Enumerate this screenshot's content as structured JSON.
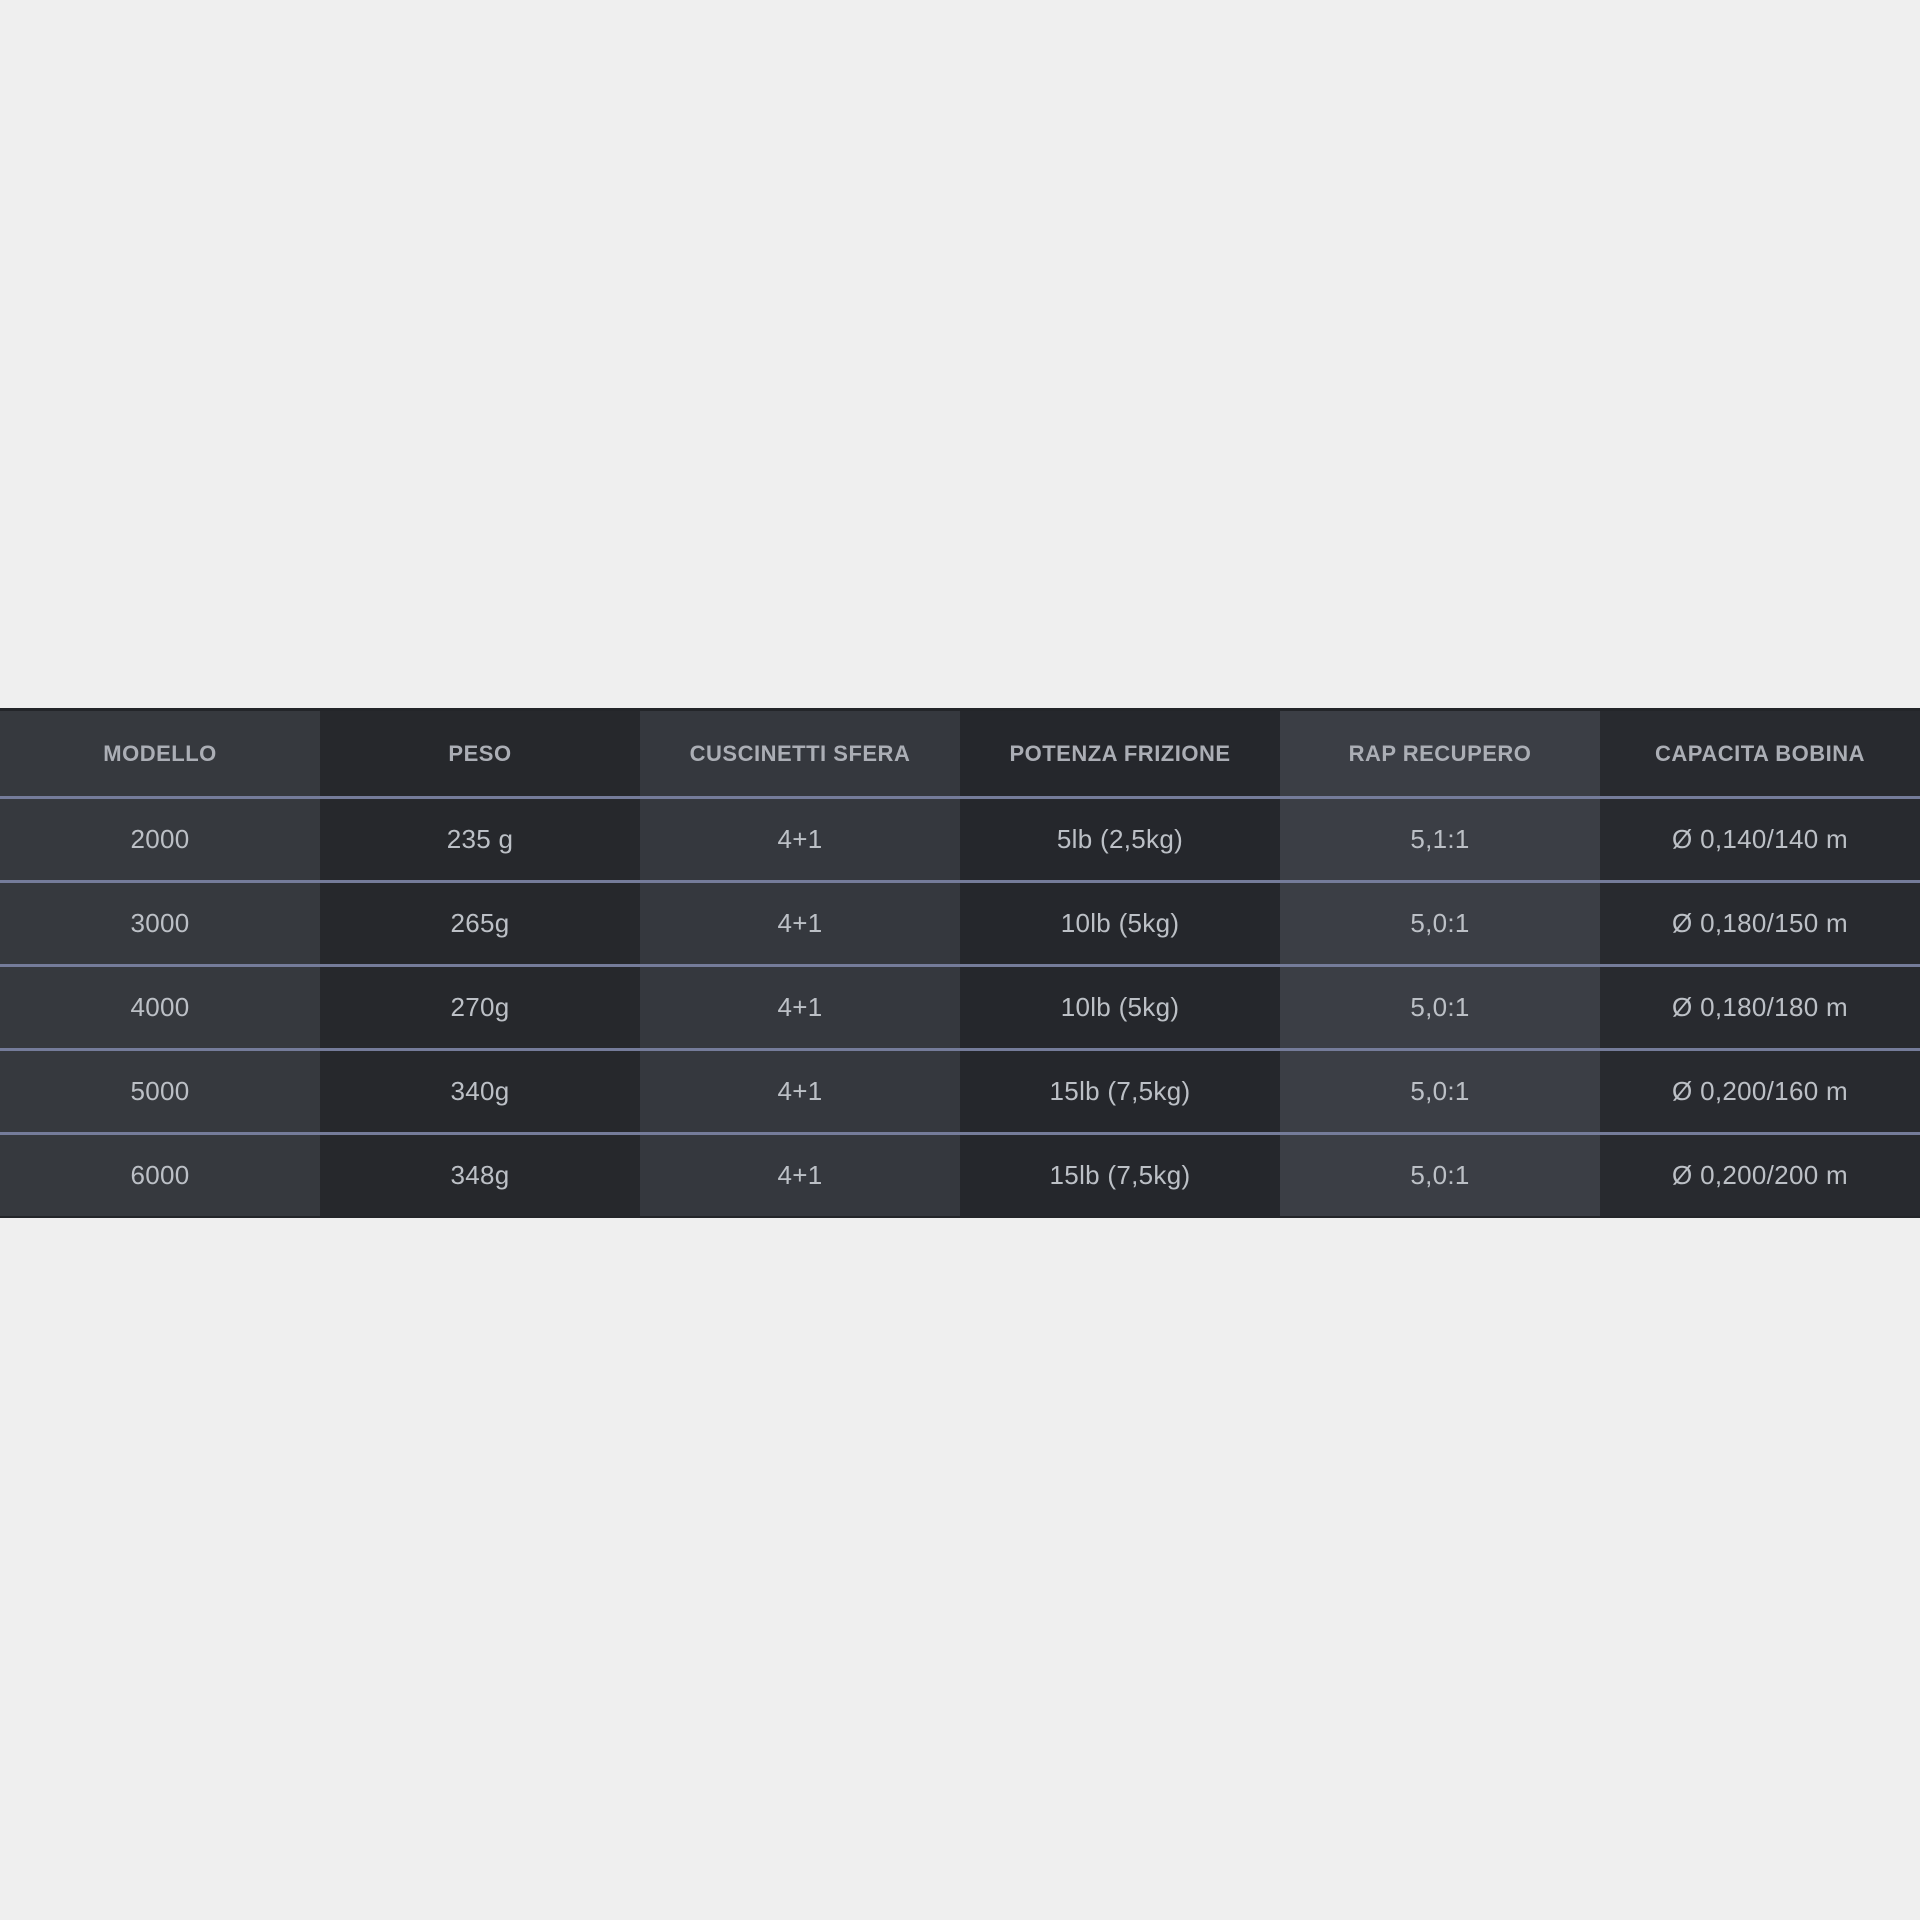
{
  "page": {
    "background": "#efefef"
  },
  "colors": {
    "column_light": "#36393e",
    "column_dark": "#26282c",
    "column_highlight": "#3b3e45",
    "row_separator": "#757c9a",
    "table_edge": "#232529",
    "header_text": "#abaeb5",
    "cell_text": "#bcc0c6"
  },
  "table": {
    "headers": [
      "MODELLO",
      "PESO",
      "CUSCINETTI SFERA",
      "POTENZA FRIZIONE",
      "RAP RECUPERO",
      "CAPACITA BOBINA"
    ],
    "rows": [
      [
        "2000",
        "235 g",
        "4+1",
        "5lb (2,5kg)",
        "5,1:1",
        "Ø 0,140/140 m"
      ],
      [
        "3000",
        "265g",
        "4+1",
        "10lb (5kg)",
        "5,0:1",
        "Ø 0,180/150 m"
      ],
      [
        "4000",
        "270g",
        "4+1",
        "10lb (5kg)",
        "5,0:1",
        "Ø 0,180/180 m"
      ],
      [
        "5000",
        "340g",
        "4+1",
        "15lb (7,5kg)",
        "5,0:1",
        "Ø 0,200/160 m"
      ],
      [
        "6000",
        "348g",
        "4+1",
        "15lb (7,5kg)",
        "5,0:1",
        "Ø 0,200/200 m"
      ]
    ]
  },
  "chart_data": {
    "type": "table",
    "title": "",
    "columns": [
      "MODELLO",
      "PESO",
      "CUSCINETTI SFERA",
      "POTENZA FRIZIONE",
      "RAP RECUPERO",
      "CAPACITA BOBINA"
    ],
    "rows": [
      [
        "2000",
        "235 g",
        "4+1",
        "5lb (2,5kg)",
        "5,1:1",
        "Ø 0,140/140 m"
      ],
      [
        "3000",
        "265g",
        "4+1",
        "10lb (5kg)",
        "5,0:1",
        "Ø 0,180/150 m"
      ],
      [
        "4000",
        "270g",
        "4+1",
        "10lb (5kg)",
        "5,0:1",
        "Ø 0,180/180 m"
      ],
      [
        "5000",
        "340g",
        "4+1",
        "15lb (7,5kg)",
        "5,0:1",
        "Ø 0,200/160 m"
      ],
      [
        "6000",
        "348g",
        "4+1",
        "15lb (7,5kg)",
        "5,0:1",
        "Ø 0,200/200 m"
      ]
    ]
  }
}
